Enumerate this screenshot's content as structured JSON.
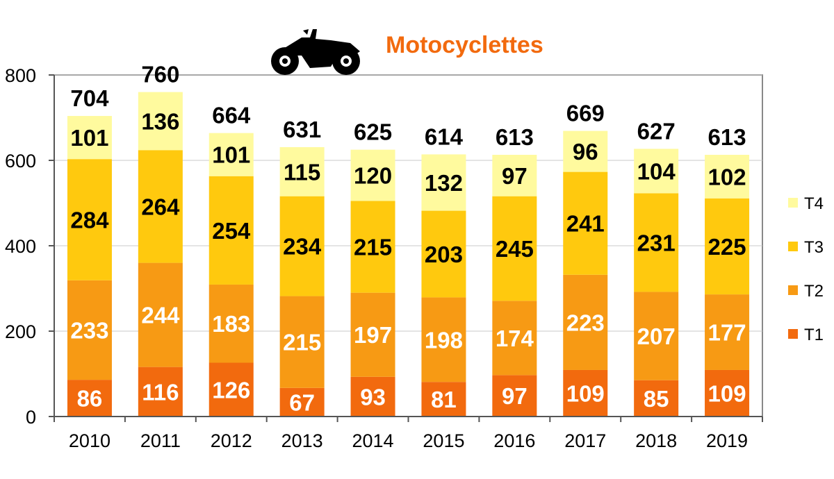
{
  "chart_data": {
    "type": "bar",
    "stacked": true,
    "title": "Motocyclettes",
    "title_icon": "motorcycle-icon",
    "categories": [
      "2010",
      "2011",
      "2012",
      "2013",
      "2014",
      "2015",
      "2016",
      "2017",
      "2018",
      "2019"
    ],
    "series": [
      {
        "name": "T1",
        "color": "#F26A0E",
        "label_color": "#ffffff",
        "values": [
          86,
          116,
          126,
          67,
          93,
          81,
          97,
          109,
          85,
          109
        ]
      },
      {
        "name": "T2",
        "color": "#F79A14",
        "label_color": "#ffffff",
        "values": [
          233,
          244,
          183,
          215,
          197,
          198,
          174,
          223,
          207,
          177
        ]
      },
      {
        "name": "T3",
        "color": "#FFC90E",
        "label_color": "#000000",
        "values": [
          284,
          264,
          254,
          234,
          215,
          203,
          245,
          241,
          231,
          225
        ]
      },
      {
        "name": "T4",
        "color": "#FFFA9E",
        "label_color": "#000000",
        "values": [
          101,
          136,
          101,
          115,
          120,
          132,
          97,
          96,
          104,
          102
        ]
      }
    ],
    "totals": [
      704,
      760,
      664,
      631,
      625,
      614,
      613,
      669,
      627,
      613
    ],
    "ylim": [
      0,
      800
    ],
    "yticks": [
      0,
      200,
      400,
      600,
      800
    ],
    "grid": true,
    "legend": "right",
    "title_color": "#F26A0E"
  }
}
